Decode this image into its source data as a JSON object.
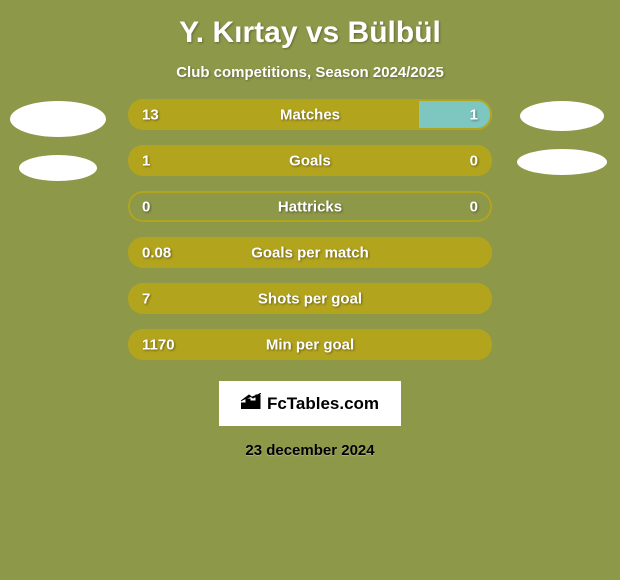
{
  "background_color": "#8e9849",
  "chart_bg_color": "#8e9849",
  "title": "Y. Kırtay vs Bülbül",
  "subtitle": "Club competitions, Season 2024/2025",
  "text_color": "#ffffff",
  "value_text_color": "#ffffff",
  "left_color": "#b3a41e",
  "right_color": "#7ec6c0",
  "outline_color": "#b3a41e",
  "bar_bg_color": "#8e9849",
  "stats": [
    {
      "label": "Matches",
      "left_val": "13",
      "right_val": "1",
      "left_pct": 80,
      "right_pct": 20
    },
    {
      "label": "Goals",
      "left_val": "1",
      "right_val": "0",
      "left_pct": 100,
      "right_pct": 0
    },
    {
      "label": "Hattricks",
      "left_val": "0",
      "right_val": "0",
      "left_pct": 0,
      "right_pct": 0
    },
    {
      "label": "Goals per match",
      "left_val": "0.08",
      "right_val": "",
      "left_pct": 100,
      "right_pct": 0
    },
    {
      "label": "Shots per goal",
      "left_val": "7",
      "right_val": "",
      "left_pct": 100,
      "right_pct": 0
    },
    {
      "label": "Min per goal",
      "left_val": "1170",
      "right_val": "",
      "left_pct": 100,
      "right_pct": 0
    }
  ],
  "logo": {
    "icon": "📊",
    "text": "FcTables.com"
  },
  "date": "23 december 2024"
}
